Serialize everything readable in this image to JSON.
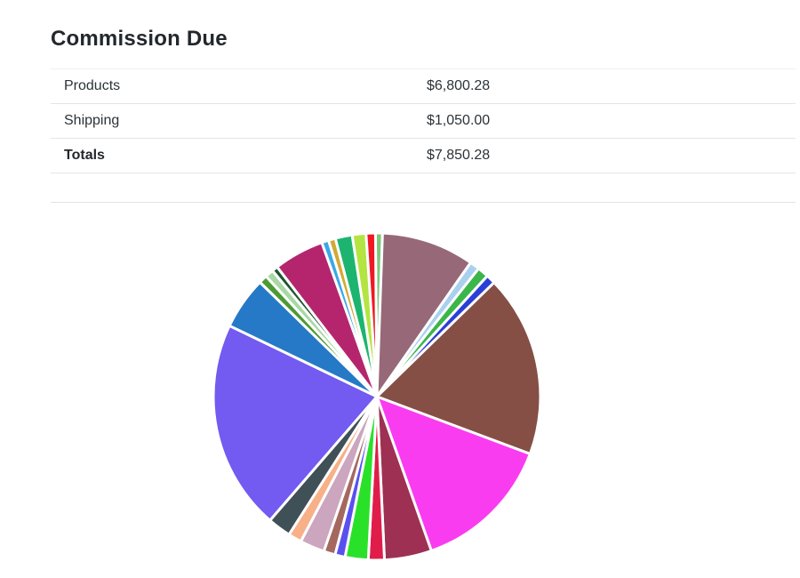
{
  "page": {
    "title": "Commission Due"
  },
  "commission_table": {
    "rows": [
      {
        "label": "Products",
        "value": "$6,800.28"
      },
      {
        "label": "Shipping",
        "value": "$1,050.00"
      },
      {
        "label": "Totals",
        "value": "$7,850.28"
      }
    ]
  },
  "chart_data": {
    "type": "pie",
    "title": "",
    "legend": "none",
    "labels_shown": false,
    "start_angle_deg": -0.5,
    "slice_border_color": "#ffffff",
    "slices": [
      {
        "name": "pale-green",
        "color": "#7cc87c",
        "percent": 0.69
      },
      {
        "name": "mauve",
        "color": "#976878",
        "percent": 9.17
      },
      {
        "name": "light-blue",
        "color": "#a9d1ef",
        "percent": 0.97
      },
      {
        "name": "green",
        "color": "#3cb54a",
        "percent": 1.11
      },
      {
        "name": "royal-blue",
        "color": "#2b3fd6",
        "percent": 0.92
      },
      {
        "name": "brown",
        "color": "#854f45",
        "percent": 17.97
      },
      {
        "name": "magenta",
        "color": "#fa3cf0",
        "percent": 13.89
      },
      {
        "name": "maroon",
        "color": "#9e3053",
        "percent": 4.67
      },
      {
        "name": "crimson",
        "color": "#e01d4a",
        "percent": 1.58
      },
      {
        "name": "bright-green",
        "color": "#2ae12a",
        "percent": 2.28
      },
      {
        "name": "blue-violet",
        "color": "#5a50f0",
        "percent": 1.0
      },
      {
        "name": "rosy-brown",
        "color": "#a5685f",
        "percent": 1.14
      },
      {
        "name": "plum",
        "color": "#cba6be",
        "percent": 2.44
      },
      {
        "name": "peach",
        "color": "#f8b088",
        "percent": 1.33
      },
      {
        "name": "dark-slate",
        "color": "#3f5056",
        "percent": 2.31
      },
      {
        "name": "purple",
        "color": "#735af0",
        "percent": 20.78
      },
      {
        "name": "steel-blue",
        "color": "#2579c6",
        "percent": 5.19
      },
      {
        "name": "olive-green",
        "color": "#4c9a34",
        "percent": 0.83
      },
      {
        "name": "light-green",
        "color": "#a8d8a4",
        "percent": 0.83
      },
      {
        "name": "forest-green",
        "color": "#1e5631",
        "percent": 0.58
      },
      {
        "name": "violet-red",
        "color": "#b5256e",
        "percent": 4.97
      },
      {
        "name": "sky-blue",
        "color": "#3aa8e8",
        "percent": 0.69
      },
      {
        "name": "goldenrod",
        "color": "#d4a834",
        "percent": 0.69
      },
      {
        "name": "sea-green",
        "color": "#1db470",
        "percent": 1.67
      },
      {
        "name": "chartreuse",
        "color": "#b4e442",
        "percent": 1.36
      },
      {
        "name": "red",
        "color": "#f01824",
        "percent": 0.92
      }
    ]
  }
}
